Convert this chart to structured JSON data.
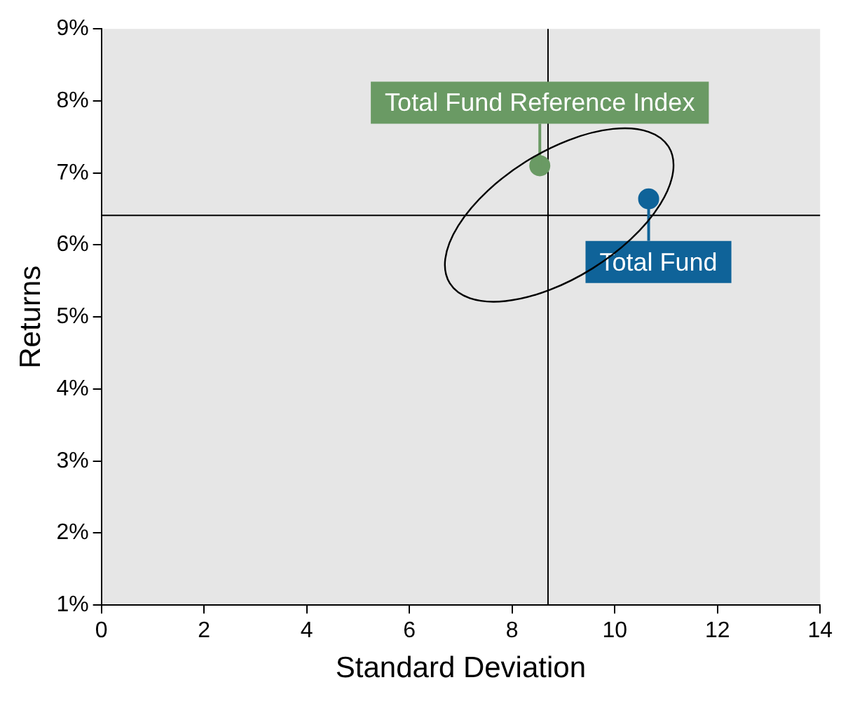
{
  "chart_data": {
    "type": "scatter",
    "xlabel": "Standard Deviation",
    "ylabel": "Returns",
    "series": [
      {
        "name": "Total Fund Reference Index",
        "color": "#6a9a64",
        "x": [
          8.54
        ],
        "values": [
          7.1
        ]
      },
      {
        "name": "Total Fund",
        "color": "#0f6399",
        "x": [
          10.66
        ],
        "values": [
          6.64
        ]
      }
    ],
    "xlim": [
      0,
      14
    ],
    "xticks": [
      0,
      2,
      4,
      6,
      8,
      10,
      12,
      14
    ],
    "ylim": [
      1,
      9
    ],
    "yticks": [
      {
        "value": 1,
        "label": "1%"
      },
      {
        "value": 2,
        "label": "2%"
      },
      {
        "value": 3,
        "label": "3%"
      },
      {
        "value": 4,
        "label": "4%"
      },
      {
        "value": 5,
        "label": "5%"
      },
      {
        "value": 6,
        "label": "6%"
      },
      {
        "value": 7,
        "label": "7%"
      },
      {
        "value": 8,
        "label": "8%"
      },
      {
        "value": 9,
        "label": "9%"
      }
    ],
    "ref_lines": [
      {
        "axis": "x",
        "value": 8.7,
        "color": "#000000"
      },
      {
        "axis": "y",
        "value": 6.41,
        "color": "#000000"
      }
    ],
    "grid": false,
    "marker": "circle"
  }
}
